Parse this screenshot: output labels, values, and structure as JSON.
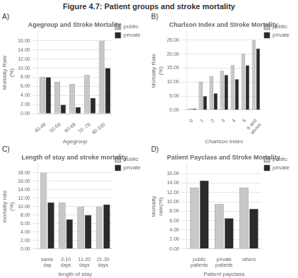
{
  "title": "Figure 4.7: Patient groups and stroke mortality",
  "chart_data": [
    {
      "type": "bar",
      "annotations": [
        "A)"
      ],
      "title": "Agegroup and Stroke Mortality",
      "xlabel": "Agegroup",
      "ylabel": "Mortality Rate\n(%)",
      "categories": [
        "40-49",
        "50-59",
        "60-69",
        "70 -79",
        "80-100"
      ],
      "series": [
        {
          "name": "public",
          "color": "#c8c8c8",
          "values": [
            8.0,
            7.0,
            6.5,
            8.5,
            16.0
          ]
        },
        {
          "name": "private",
          "color": "#2a2a2a",
          "values": [
            8.0,
            2.0,
            1.5,
            3.5,
            10.0
          ]
        }
      ],
      "ylim": [
        0,
        18
      ],
      "yticks": [
        {
          "value": 0,
          "label": "0.00"
        },
        {
          "value": 2,
          "label": "2.00"
        },
        {
          "value": 4,
          "label": "4.00"
        },
        {
          "value": 6,
          "label": "6.00"
        },
        {
          "value": 8,
          "label": "8.00"
        },
        {
          "value": 10,
          "label": "10.00"
        },
        {
          "value": 12,
          "label": "12.00"
        },
        {
          "value": 14,
          "label": "14.00"
        },
        {
          "value": 16,
          "label": "16.00"
        }
      ],
      "grid": "y",
      "legend": "right"
    },
    {
      "type": "bar",
      "annotations": [
        "B)"
      ],
      "title": "Charlson Index and Stroke Mortality",
      "xlabel": "Charlson Index",
      "ylabel": "Mortality Rate\n(%)",
      "categories": [
        "0",
        "1",
        "2",
        "3",
        "4",
        "5",
        "6 and\nabove"
      ],
      "series": [
        {
          "name": "public",
          "color": "#c8c8c8",
          "values": [
            0.5,
            10.0,
            12.0,
            14.0,
            16.0,
            20.0,
            25.0
          ]
        },
        {
          "name": "private",
          "color": "#2a2a2a",
          "values": [
            0.5,
            5.0,
            6.0,
            12.5,
            11.0,
            16.0,
            22.0
          ]
        }
      ],
      "ylim": [
        0,
        28
      ],
      "yticks": [
        {
          "value": 0,
          "label": "0.00"
        },
        {
          "value": 5,
          "label": "5.00"
        },
        {
          "value": 10,
          "label": "10.00"
        },
        {
          "value": 15,
          "label": "15.00"
        },
        {
          "value": 20,
          "label": "20.00"
        },
        {
          "value": 25,
          "label": "25.00"
        }
      ],
      "grid": "y",
      "legend": "right"
    },
    {
      "type": "bar",
      "annotations": [
        "C)"
      ],
      "title": "Length of stay and stroke mortality",
      "xlabel": "length of stay",
      "ylabel": "mortality rate\n(%)",
      "categories": [
        "same\nday",
        "2-10\ndays",
        "11-20\ndays",
        "21-30\ndays"
      ],
      "series": [
        {
          "name": "public",
          "color": "#c8c8c8",
          "values": [
            18.0,
            11.0,
            10.0,
            10.0
          ]
        },
        {
          "name": "private",
          "color": "#2a2a2a",
          "values": [
            11.0,
            7.0,
            8.0,
            10.5
          ]
        }
      ],
      "ylim": [
        0,
        20
      ],
      "yticks": [
        {
          "value": 0,
          "label": "0.00"
        },
        {
          "value": 2,
          "label": "2.00"
        },
        {
          "value": 4,
          "label": "4.00"
        },
        {
          "value": 6,
          "label": "6.00"
        },
        {
          "value": 8,
          "label": "8.00"
        },
        {
          "value": 10,
          "label": "10.00"
        },
        {
          "value": 12,
          "label": "12.00"
        },
        {
          "value": 14,
          "label": "14.00"
        },
        {
          "value": 16,
          "label": "16.00"
        },
        {
          "value": 18,
          "label": "18.00"
        }
      ],
      "grid": "y",
      "legend": "right"
    },
    {
      "type": "bar",
      "annotations": [
        "D)"
      ],
      "title": "Patient Payclass and Stroke Mortality",
      "xlabel": "Patient payclass",
      "ylabel": "Mortality\nrate(%)",
      "categories": [
        "public\npatients",
        "private\npatients",
        "others"
      ],
      "series": [
        {
          "name": "public",
          "color": "#c8c8c8",
          "values": [
            13.0,
            9.5,
            13.0
          ]
        },
        {
          "name": "private",
          "color": "#2a2a2a",
          "values": [
            14.5,
            6.5,
            8.5
          ]
        }
      ],
      "ylim": [
        0,
        18
      ],
      "yticks": [
        {
          "value": 0,
          "label": "0.00"
        },
        {
          "value": 2,
          "label": "2.00"
        },
        {
          "value": 4,
          "label": "4.00"
        },
        {
          "value": 6,
          "label": "6.00"
        },
        {
          "value": 8,
          "label": "8.00"
        },
        {
          "value": 10,
          "label": "10.00"
        },
        {
          "value": 12,
          "label": "12.00"
        },
        {
          "value": 14,
          "label": "14.00"
        },
        {
          "value": 16,
          "label": "16.00"
        }
      ],
      "grid": "y",
      "legend": "right"
    }
  ]
}
